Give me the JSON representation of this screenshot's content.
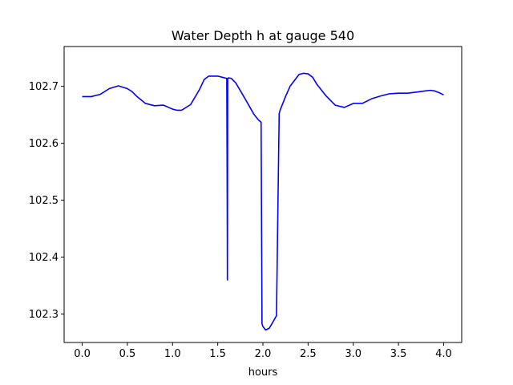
{
  "chart_data": {
    "type": "line",
    "title": "Water Depth h at gauge 540",
    "xlabel": "hours",
    "ylabel": "",
    "xlim": [
      -0.2,
      4.2
    ],
    "ylim": [
      102.25,
      102.77
    ],
    "xticks": [
      0.0,
      0.5,
      1.0,
      1.5,
      2.0,
      2.5,
      3.0,
      3.5,
      4.0
    ],
    "xtick_labels": [
      "0.0",
      "0.5",
      "1.0",
      "1.5",
      "2.0",
      "2.5",
      "3.0",
      "3.5",
      "4.0"
    ],
    "yticks": [
      102.3,
      102.4,
      102.5,
      102.6,
      102.7
    ],
    "ytick_labels": [
      "102.3",
      "102.4",
      "102.5",
      "102.6",
      "102.7"
    ],
    "grid": false,
    "line_color": "#0000ff",
    "series": [
      {
        "x": [
          0.0,
          0.1,
          0.2,
          0.3,
          0.4,
          0.5,
          0.55,
          0.6,
          0.7,
          0.8,
          0.9,
          1.0,
          1.05,
          1.1,
          1.2,
          1.3,
          1.35,
          1.4,
          1.45,
          1.5,
          1.55,
          1.6,
          1.605,
          1.607,
          1.61,
          1.62,
          1.65,
          1.7,
          1.8,
          1.9,
          1.95,
          1.98,
          1.99,
          2.0,
          2.03,
          2.07,
          2.1,
          2.15,
          2.18,
          2.19,
          2.25,
          2.3,
          2.4,
          2.45,
          2.5,
          2.55,
          2.6,
          2.7,
          2.8,
          2.9,
          3.0,
          3.1,
          3.2,
          3.3,
          3.4,
          3.5,
          3.6,
          3.7,
          3.8,
          3.85,
          3.9,
          3.95,
          4.0
        ],
        "y": [
          102.682,
          102.682,
          102.686,
          102.696,
          102.701,
          102.696,
          102.691,
          102.683,
          102.67,
          102.666,
          102.667,
          102.66,
          102.658,
          102.658,
          102.668,
          102.695,
          102.712,
          102.718,
          102.718,
          102.718,
          102.716,
          102.714,
          102.5,
          102.36,
          102.714,
          102.715,
          102.714,
          102.706,
          102.679,
          102.651,
          102.641,
          102.637,
          102.283,
          102.278,
          102.272,
          102.275,
          102.283,
          102.297,
          102.652,
          102.658,
          102.682,
          102.7,
          102.721,
          102.723,
          102.722,
          102.716,
          102.703,
          102.683,
          102.667,
          102.663,
          102.67,
          102.67,
          102.678,
          102.683,
          102.687,
          102.688,
          102.688,
          102.69,
          102.692,
          102.693,
          102.692,
          102.689,
          102.685
        ]
      }
    ]
  }
}
